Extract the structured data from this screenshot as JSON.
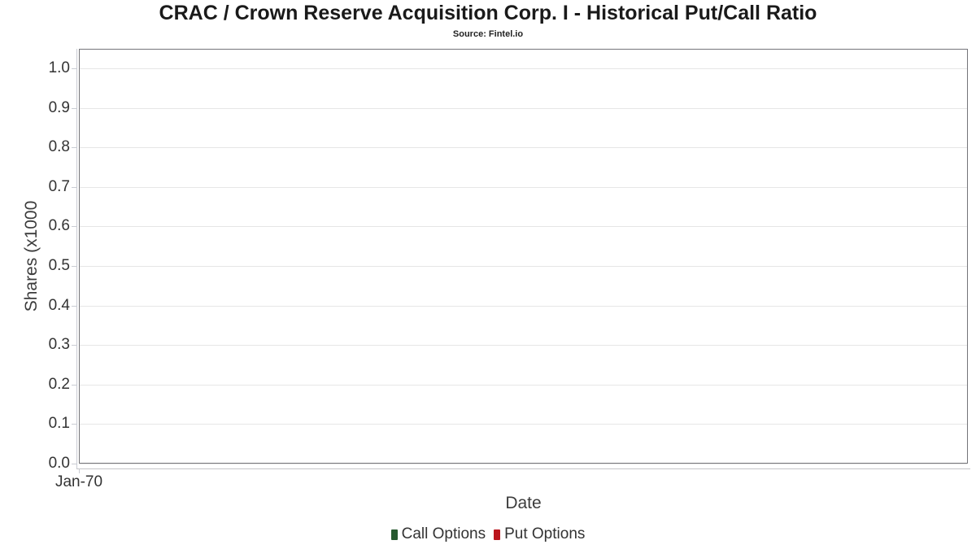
{
  "chart_data": {
    "type": "line",
    "title": "CRAC / Crown Reserve Acquisition Corp. I - Historical Put/Call Ratio",
    "subtitle": "Source: Fintel.io",
    "xlabel": "Date",
    "ylabel": "Shares (x1000",
    "x_ticks": [
      "Jan-70"
    ],
    "y_ticks": [
      0.0,
      0.1,
      0.2,
      0.3,
      0.4,
      0.5,
      0.6,
      0.7,
      0.8,
      0.9,
      1.0
    ],
    "y_tick_labels": [
      "0.0",
      "0.1",
      "0.2",
      "0.3",
      "0.4",
      "0.5",
      "0.6",
      "0.7",
      "0.8",
      "0.9",
      "1.0"
    ],
    "ylim": [
      0.0,
      1.0
    ],
    "grid": true,
    "legend_position": "bottom",
    "colors": {
      "plot_border": "#75757a",
      "gridline": "#e6e6e6",
      "axis_line": "#c9ccd3",
      "text": "#333333"
    },
    "series": [
      {
        "name": "Call Options",
        "color": "#27592f",
        "x": [],
        "values": []
      },
      {
        "name": "Put Options",
        "color": "#bb161d",
        "x": [],
        "values": []
      }
    ]
  }
}
